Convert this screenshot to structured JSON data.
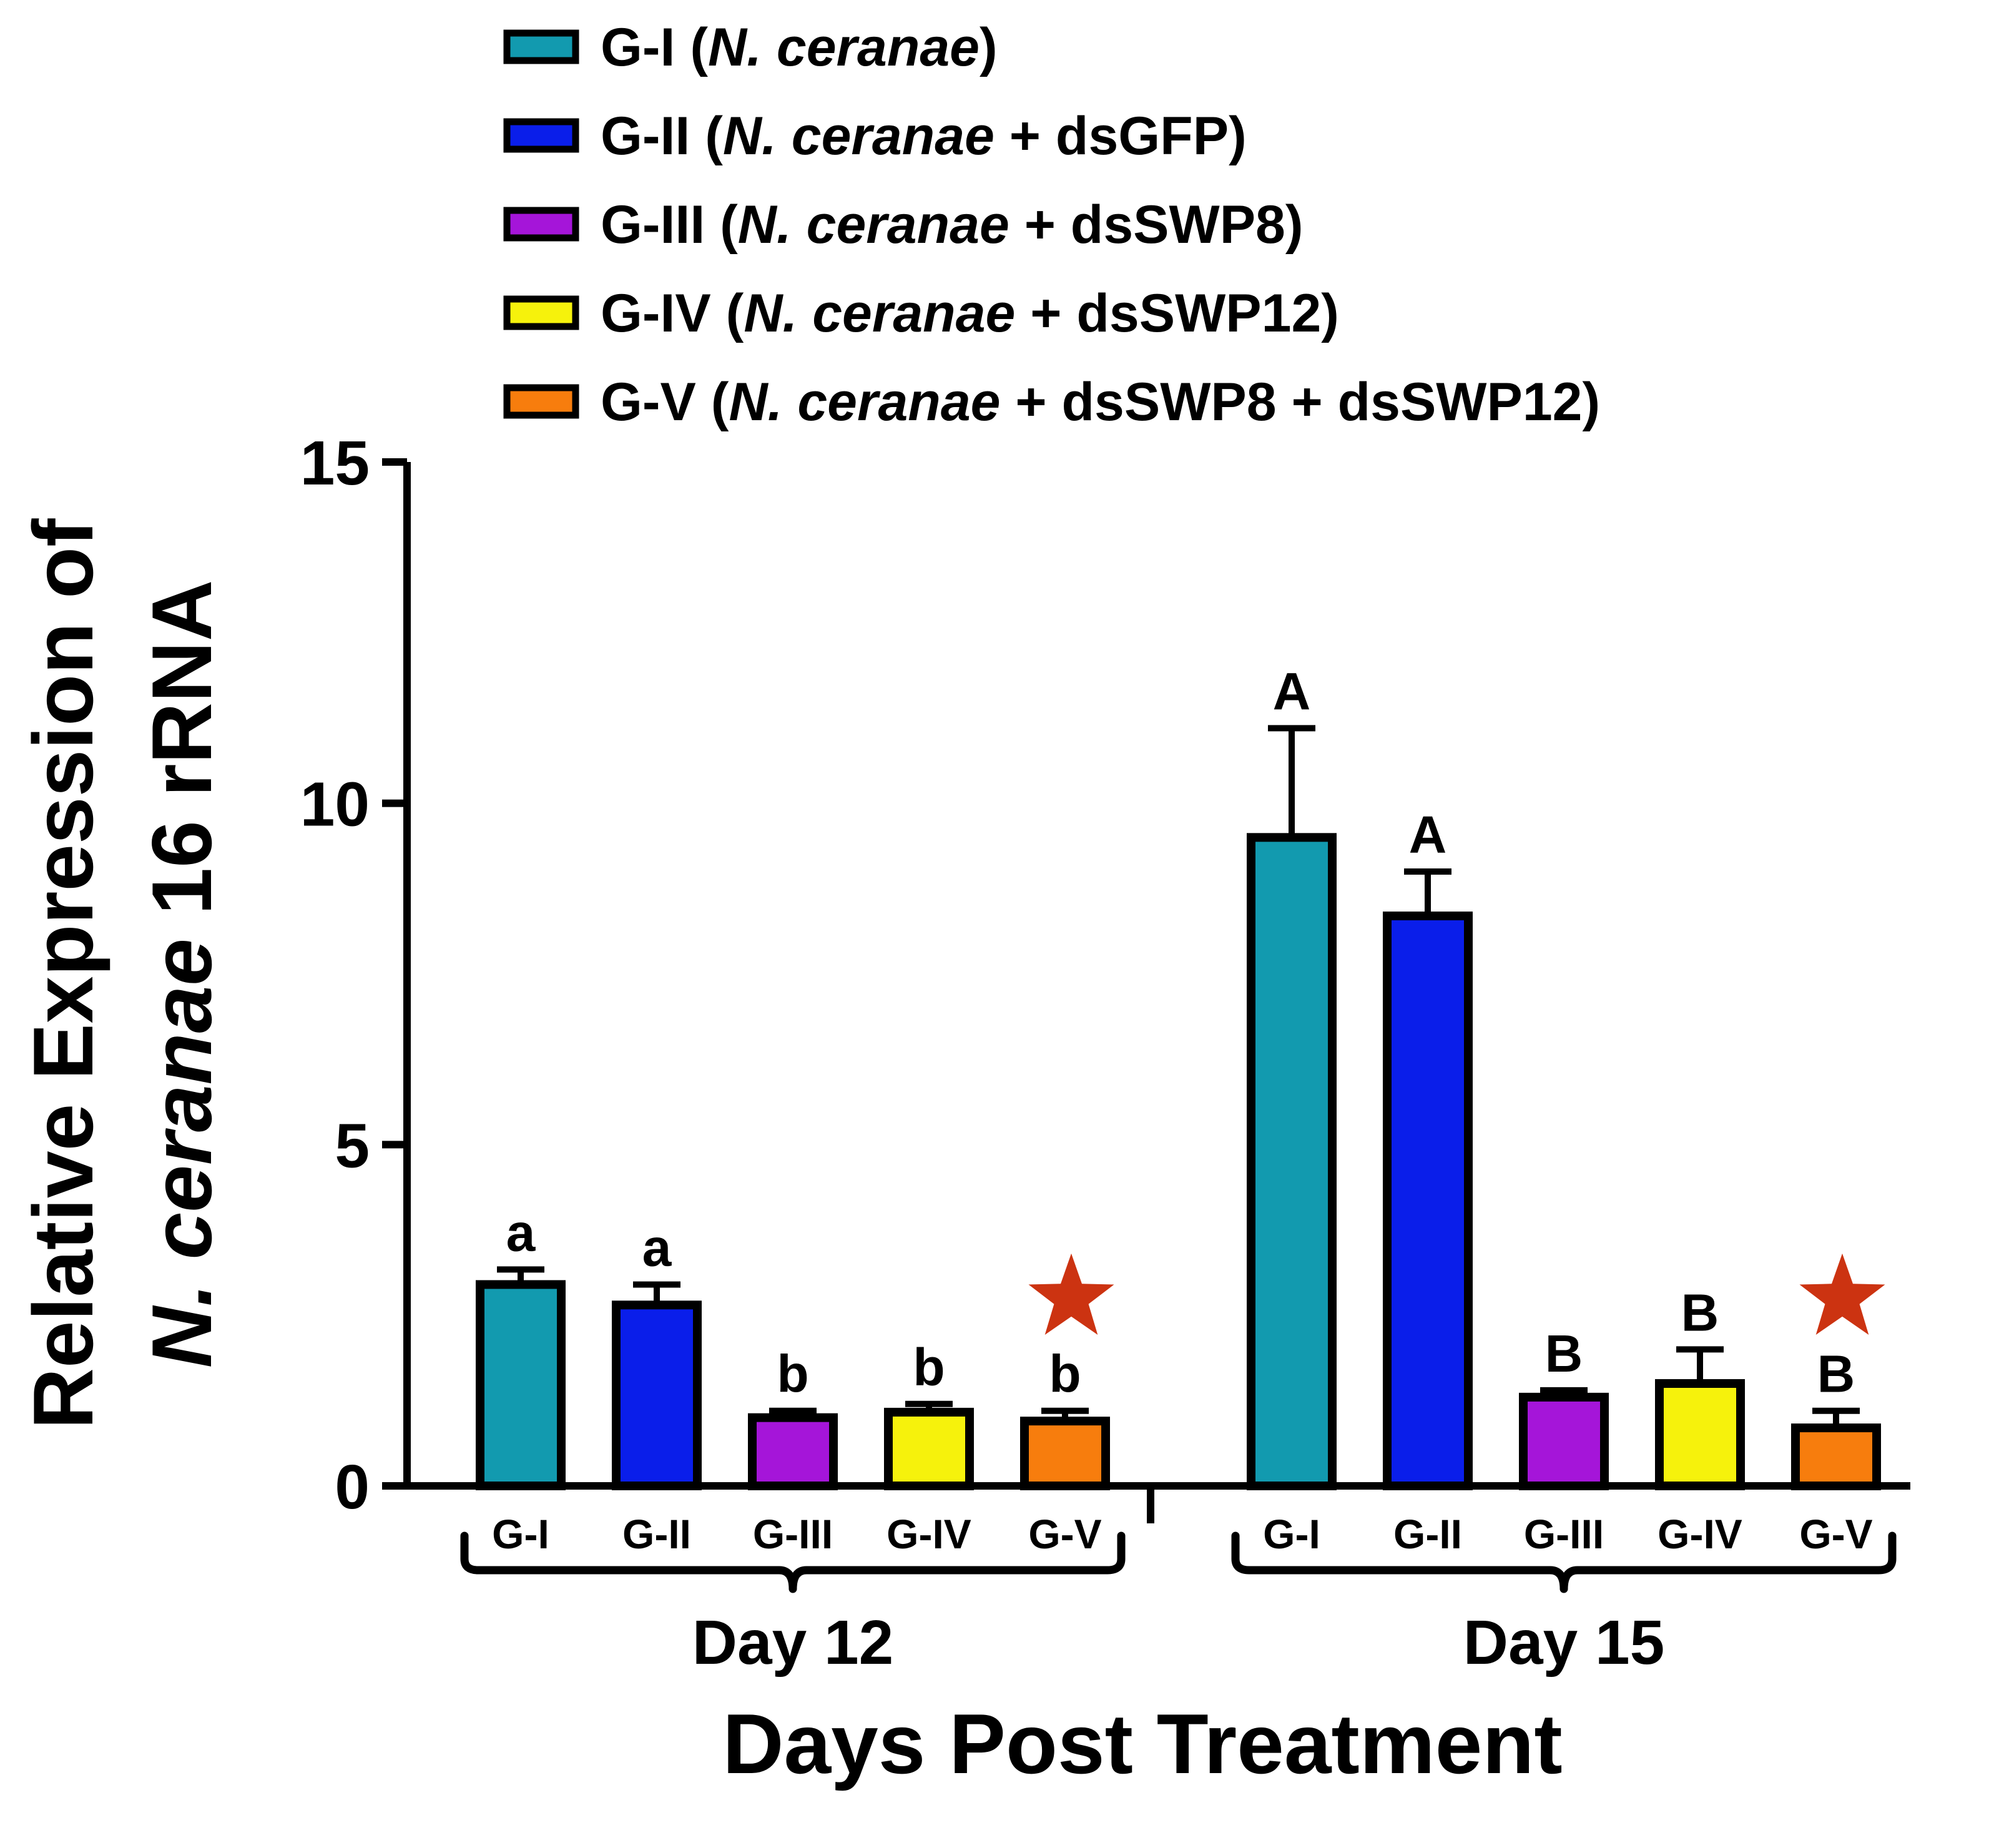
{
  "chart_data": {
    "type": "bar",
    "title": "",
    "ylabel_line1": "Relative Expression of",
    "ylabel_line2_italic": "N. ceranae",
    "ylabel_line2_rest": " 16 rRNA",
    "xlabel": "Days Post Treatment",
    "ylim": [
      0,
      15
    ],
    "yticks": [
      "0",
      "5",
      "10",
      "15"
    ],
    "ytick_values": [
      0,
      5,
      10,
      15
    ],
    "categories": [
      "G-I",
      "G-II",
      "G-III",
      "G-IV",
      "G-V"
    ],
    "groups": [
      {
        "label": "Day 12",
        "values": [
          2.95,
          2.65,
          1.0,
          1.08,
          0.95
        ],
        "errors": [
          0.22,
          0.3,
          0.1,
          0.12,
          0.15
        ],
        "sig_letters": [
          "a",
          "a",
          "b",
          "b",
          "b"
        ],
        "star_on_index": 4
      },
      {
        "label": "Day 15",
        "values": [
          9.5,
          8.35,
          1.3,
          1.5,
          0.85
        ],
        "errors": [
          1.6,
          0.65,
          0.1,
          0.5,
          0.25
        ],
        "sig_letters": [
          "A",
          "A",
          "B",
          "B",
          "B"
        ],
        "star_on_index": 4
      }
    ],
    "series": [
      {
        "name": "G-I",
        "color": "#129aaf"
      },
      {
        "name": "G-II",
        "color": "#0a1eea"
      },
      {
        "name": "G-III",
        "color": "#a515d9"
      },
      {
        "name": "G-IV",
        "color": "#f6f20c"
      },
      {
        "name": "G-V",
        "color": "#f77d0d"
      }
    ],
    "legend": [
      {
        "prefix": "G-I (",
        "italic": "N. ceranae",
        "suffix": ")"
      },
      {
        "prefix": "G-II (",
        "italic": "N. ceranae",
        "suffix": " + dsGFP)"
      },
      {
        "prefix": "G-III (",
        "italic": "N. ceranae",
        "suffix": " + dsSWP8)"
      },
      {
        "prefix": "G-IV (",
        "italic": "N. ceranae",
        "suffix": " + dsSWP12)"
      },
      {
        "prefix": "G-V (",
        "italic": "N. ceranae",
        "suffix": " + dsSWP8 + dsSWP12)"
      }
    ],
    "legend_position": "top",
    "star_color": "#cc3311",
    "grid": false
  }
}
